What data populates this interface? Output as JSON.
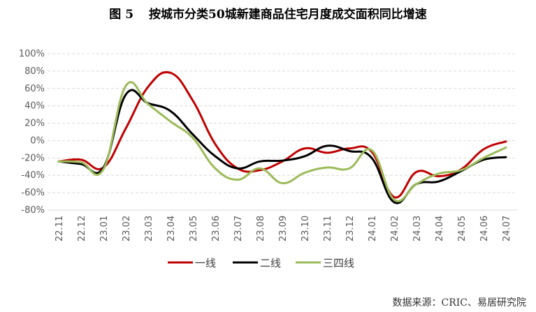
{
  "figure": {
    "label": "图 5",
    "title": "按城市分类50城新建商品住宅月度成交面积同比增速"
  },
  "source": "数据来源：CRIC、易居研究院",
  "chart_data": {
    "type": "line",
    "categories": [
      "22.11",
      "22.12",
      "23.01",
      "23.02",
      "23.03",
      "23.04",
      "23.05",
      "23.06",
      "23.07",
      "23.08",
      "23.09",
      "23.10",
      "23.11",
      "23.12",
      "24.01",
      "24.02",
      "24.03",
      "24.04",
      "24.05",
      "24.06",
      "24.07"
    ],
    "ylim": [
      -80,
      100
    ],
    "yticks": [
      -80,
      -60,
      -40,
      -20,
      0,
      20,
      40,
      60,
      80,
      100
    ],
    "ytick_labels": [
      "-80%",
      "-60%",
      "-40%",
      "-20%",
      "0%",
      "20%",
      "40%",
      "60%",
      "80%",
      "100%"
    ],
    "grid": true,
    "legend_position": "bottom",
    "series": [
      {
        "name": "一线",
        "color": "#C00000",
        "values": [
          -24,
          -22,
          -31,
          14,
          62,
          78,
          46,
          -4,
          -32,
          -34,
          -24,
          -9,
          -14,
          -9,
          -13,
          -65,
          -36,
          -41,
          -33,
          -10,
          -1
        ]
      },
      {
        "name": "二线",
        "color": "#000000",
        "values": [
          -24,
          -27,
          -31,
          53,
          43,
          34,
          7,
          -18,
          -32,
          -24,
          -23,
          -18,
          -6,
          -12,
          -20,
          -71,
          -50,
          -47,
          -35,
          -22,
          -19
        ]
      },
      {
        "name": "三四线",
        "color": "#9BBB59",
        "values": [
          -24,
          -25,
          -33,
          63,
          42,
          22,
          3,
          -32,
          -45,
          -32,
          -49,
          -37,
          -31,
          -32,
          -11,
          -68,
          -50,
          -38,
          -34,
          -20,
          -8
        ]
      }
    ]
  }
}
